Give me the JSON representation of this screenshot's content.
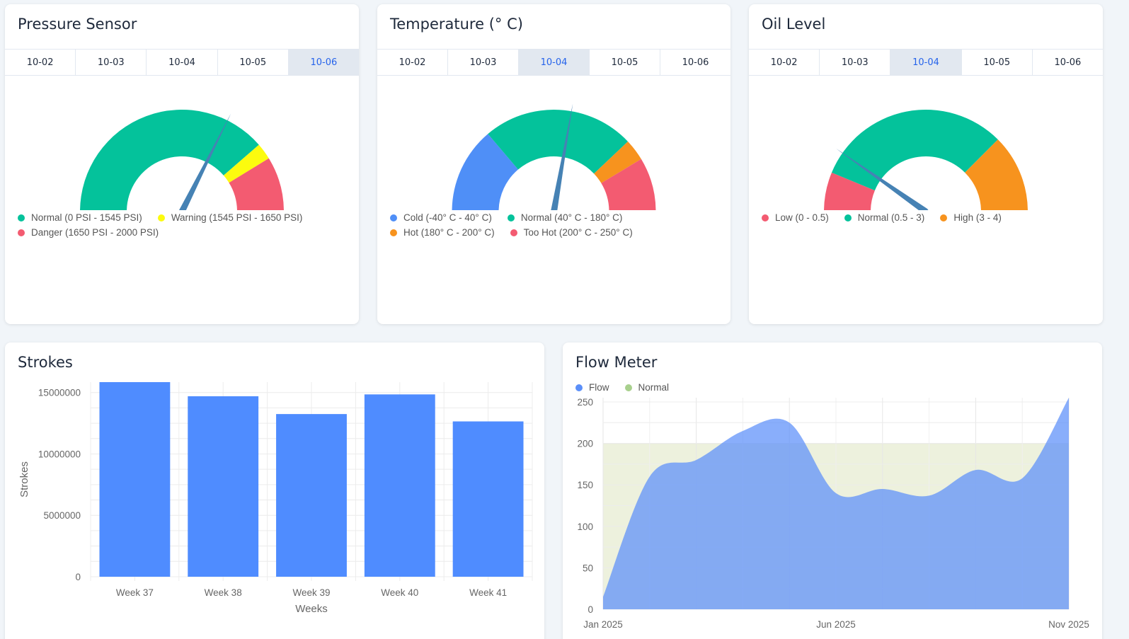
{
  "gauges": [
    {
      "title": "Pressure Sensor",
      "tabs": [
        "10-02",
        "10-03",
        "10-04",
        "10-05",
        "10-06"
      ],
      "active_tab": 4,
      "min": 0,
      "max": 2000,
      "value": 1295,
      "value_label": "1295 PSI",
      "bands": [
        {
          "from": 0,
          "to": 1545,
          "color": "#04c29b"
        },
        {
          "from": 1545,
          "to": 1650,
          "color": "#fcfb0e"
        },
        {
          "from": 1650,
          "to": 2000,
          "color": "#f35b71"
        }
      ],
      "legend": [
        {
          "label": "Normal (0 PSI - 1545 PSI)",
          "color": "#04c29b"
        },
        {
          "label": "Warning (1545 PSI - 1650 PSI)",
          "color": "#fcfb0e"
        },
        {
          "label": "Danger (1650 PSI - 2000 PSI)",
          "color": "#f35b71"
        }
      ]
    },
    {
      "title": "Temperature (° C)",
      "tabs": [
        "10-02",
        "10-03",
        "10-04",
        "10-05",
        "10-06"
      ],
      "active_tab": 2,
      "min": -40,
      "max": 250,
      "value": 121,
      "value_label": "121° C",
      "bands": [
        {
          "from": -40,
          "to": 40,
          "color": "#4f8ff7"
        },
        {
          "from": 40,
          "to": 180,
          "color": "#04c29b"
        },
        {
          "from": 180,
          "to": 200,
          "color": "#f7931e"
        },
        {
          "from": 200,
          "to": 250,
          "color": "#f35b71"
        }
      ],
      "legend": [
        {
          "label": "Cold (-40° C - 40° C)",
          "color": "#4f8ff7"
        },
        {
          "label": "Normal (40° C - 180° C)",
          "color": "#04c29b"
        },
        {
          "label": "Hot (180° C - 200° C)",
          "color": "#f7931e"
        },
        {
          "label": "Too Hot (200° C - 250° C)",
          "color": "#f35b71"
        }
      ]
    },
    {
      "title": "Oil Level",
      "tabs": [
        "10-02",
        "10-03",
        "10-04",
        "10-05",
        "10-06"
      ],
      "active_tab": 2,
      "min": 0,
      "max": 4,
      "value": 0.78,
      "value_label": "0.78",
      "bands": [
        {
          "from": 0,
          "to": 0.5,
          "color": "#f35b71"
        },
        {
          "from": 0.5,
          "to": 3,
          "color": "#04c29b"
        },
        {
          "from": 3,
          "to": 4,
          "color": "#f7931e"
        }
      ],
      "legend": [
        {
          "label": "Low (0 - 0.5)",
          "color": "#f35b71"
        },
        {
          "label": "Normal (0.5 - 3)",
          "color": "#04c29b"
        },
        {
          "label": "High (3 - 4)",
          "color": "#f7931e"
        }
      ]
    }
  ],
  "needle_color": "#4682b4",
  "strokes": {
    "title": "Strokes",
    "chart_data": {
      "type": "bar",
      "categories": [
        "Week 37",
        "Week 38",
        "Week 39",
        "Week 40",
        "Week 41"
      ],
      "values": [
        15850000,
        14700000,
        13250000,
        14850000,
        12650000
      ],
      "xlabel": "Weeks",
      "ylabel": "Strokes",
      "ylim": [
        0,
        15850000
      ],
      "yticks": [
        "0",
        "5000000",
        "10000000",
        "15000000"
      ],
      "color": "#4f8cff",
      "grid": true
    }
  },
  "flow": {
    "title": "Flow Meter",
    "legend": [
      {
        "label": "Flow",
        "color": "#5b8ff9"
      },
      {
        "label": "Normal",
        "color": "#a8d08d"
      }
    ],
    "chart_data": {
      "type": "area",
      "x_labels": [
        "Jan 2025",
        "Jun 2025",
        "Nov 2025"
      ],
      "x": [
        0,
        1,
        2,
        3,
        4,
        5,
        6,
        7,
        8,
        9,
        10
      ],
      "series": [
        {
          "name": "Flow",
          "values": [
            15,
            160,
            180,
            215,
            225,
            140,
            145,
            137,
            168,
            158,
            255
          ]
        },
        {
          "name": "Normal",
          "values": [
            200,
            200,
            200,
            200,
            200,
            200,
            200,
            200,
            200,
            200,
            200
          ]
        }
      ],
      "ylim": [
        0,
        250
      ],
      "yticks": [
        "0",
        "50",
        "100",
        "150",
        "200",
        "250"
      ],
      "grid": true
    }
  }
}
